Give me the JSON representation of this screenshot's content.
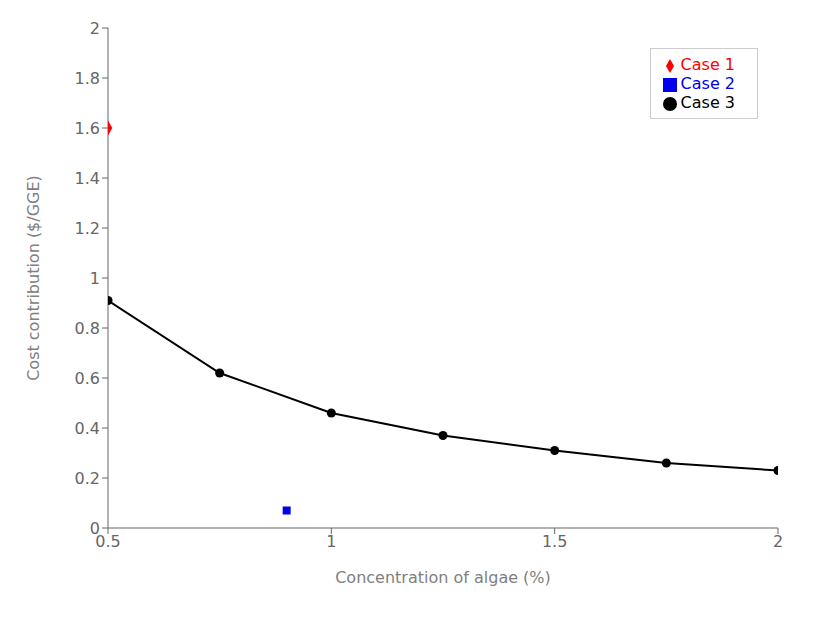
{
  "chart_data": {
    "type": "line",
    "x_label": "Concentration of algae (%)",
    "y_label": "Cost contribution ($/GGE)",
    "series": [
      {
        "name": "Case 1",
        "type": "scatter",
        "marker": "diamond",
        "color": "#FF0000",
        "x": [
          0.5
        ],
        "values": [
          1.6
        ]
      },
      {
        "name": "Case 2",
        "type": "scatter",
        "marker": "square",
        "color": "#0000EE",
        "x": [
          0.9
        ],
        "values": [
          0.07
        ]
      },
      {
        "name": "Case 3",
        "type": "line",
        "marker": "circle",
        "color": "#000000",
        "x": [
          0.5,
          0.75,
          1.0,
          1.25,
          1.5,
          1.75,
          2.0
        ],
        "values": [
          0.91,
          0.62,
          0.46,
          0.37,
          0.31,
          0.26,
          0.23
        ]
      }
    ],
    "xlim": [
      0.5,
      2.0
    ],
    "ylim": [
      0,
      2.0
    ],
    "xticks": [
      0.5,
      1.0,
      1.5,
      2.0
    ],
    "yticks": [
      0,
      0.2,
      0.4,
      0.6,
      0.8,
      1.0,
      1.2,
      1.4,
      1.6,
      1.8,
      2.0
    ],
    "grid": false,
    "legend": "upper right"
  }
}
